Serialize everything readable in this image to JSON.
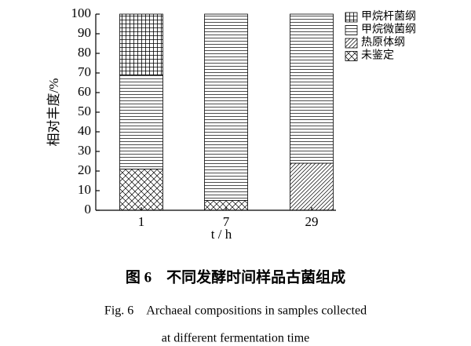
{
  "chart_data": {
    "type": "stacked-bar",
    "y_label": "相对丰度/%",
    "x_label": "t / h",
    "categories": [
      "1",
      "7",
      "29"
    ],
    "series": [
      {
        "name": "甲烷杆菌纲",
        "color": "#000000",
        "pattern": "grid",
        "values": [
          31,
          0,
          0
        ]
      },
      {
        "name": "甲烷微菌纲",
        "color": "#000000",
        "pattern": "hlines",
        "values": [
          48,
          95,
          76
        ]
      },
      {
        "name": "热原体纲",
        "color": "#000000",
        "pattern": "diag",
        "values": [
          0,
          0,
          24
        ]
      },
      {
        "name": "未鉴定",
        "color": "#000000",
        "pattern": "xdiag",
        "values": [
          21,
          5,
          0
        ]
      }
    ],
    "ylim": [
      0,
      100
    ],
    "yticks": [
      0,
      10,
      20,
      30,
      40,
      50,
      60,
      70,
      80,
      90,
      100
    ],
    "legend": "upper right",
    "caption_cn": "图 6　不同发酵时间样品古菌组成",
    "caption_en": [
      "Fig. 6　Archaeal compositions in samples collected",
      "at different fermentation time"
    ]
  }
}
